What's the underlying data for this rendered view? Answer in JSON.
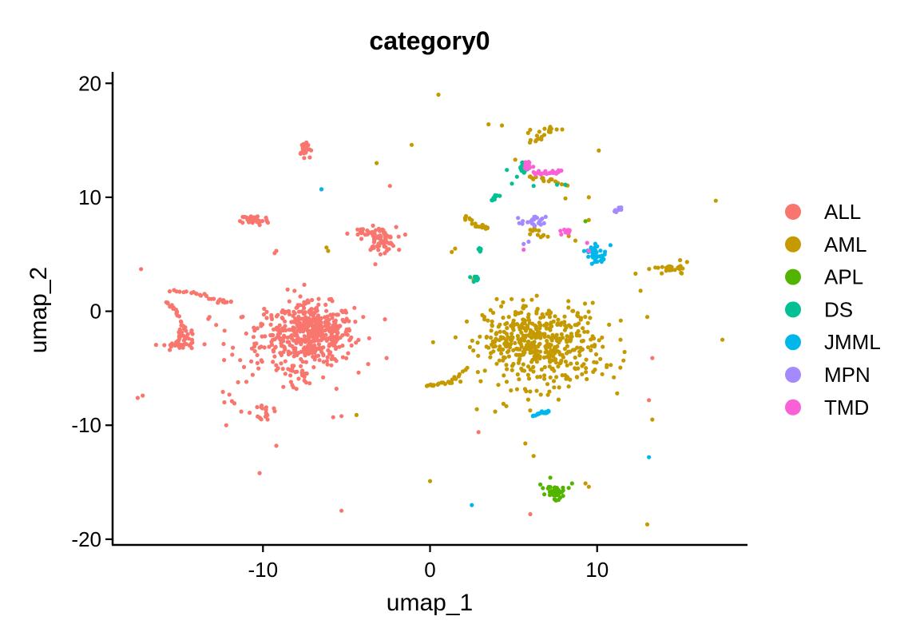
{
  "chart_data": {
    "type": "scatter",
    "title": "category0",
    "xlabel": "umap_1",
    "ylabel": "umap_2",
    "xlim": [
      -19,
      19
    ],
    "ylim": [
      -20.5,
      21
    ],
    "x_ticks": [
      -10,
      0,
      10
    ],
    "x_tick_labels": [
      "-10",
      "0",
      "10"
    ],
    "y_ticks": [
      -20,
      -10,
      0,
      10,
      20
    ],
    "y_tick_labels": [
      "-20",
      "-10",
      "0",
      "10",
      "20"
    ],
    "grid": false,
    "legend_position": "right",
    "series": [
      {
        "name": "ALL",
        "color": "#F8766D",
        "clusters": [
          {
            "cx": -7,
            "cy": -2,
            "rx": 2.2,
            "ry": 2.4,
            "n": 420,
            "dense": true
          },
          {
            "cx": -9,
            "cy": -2.5,
            "rx": 2.5,
            "ry": 3,
            "n": 90
          },
          {
            "cx": -3,
            "cy": 6.3,
            "rx": 0.8,
            "ry": 0.9,
            "n": 70
          },
          {
            "cx": -4.2,
            "cy": 6.8,
            "rx": 0.6,
            "ry": 0.4,
            "n": 12
          },
          {
            "cx": -10.5,
            "cy": 8,
            "rx": 0.7,
            "ry": 0.4,
            "n": 45
          },
          {
            "cx": -7.5,
            "cy": 14.3,
            "rx": 0.3,
            "ry": 0.5,
            "n": 25
          },
          {
            "cx": -15,
            "cy": -3,
            "rx": 0.8,
            "ry": 0.4,
            "n": 30
          },
          {
            "cx": -14.5,
            "cy": -2,
            "rx": 0.4,
            "ry": 0.6,
            "n": 12
          },
          {
            "cx": -9.8,
            "cy": -8.8,
            "rx": 0.35,
            "ry": 0.6,
            "n": 18
          },
          {
            "cx": -12,
            "cy": -7.5,
            "rx": 0.5,
            "ry": 0.7,
            "n": 5
          },
          {
            "cx": -8.2,
            "cy": -6,
            "rx": 0.9,
            "ry": 1.2,
            "n": 15
          }
        ],
        "paths": [
          [
            [
              -15.5,
              1.8
            ],
            [
              -14,
              1.6
            ],
            [
              -12.8,
              0.9
            ],
            [
              -12,
              0.8
            ]
          ],
          [
            [
              -15.8,
              0.8
            ],
            [
              -15.2,
              0
            ],
            [
              -14.8,
              -1.5
            ],
            [
              -15,
              -2.5
            ]
          ]
        ],
        "points": [
          [
            -17.5,
            -7.6
          ],
          [
            -17.2,
            -7.4
          ],
          [
            -17.3,
            3.7
          ],
          [
            -13.2,
            -0.5
          ],
          [
            -12.8,
            -1.2
          ],
          [
            -12.3,
            -1.7
          ],
          [
            -11.8,
            -3.2
          ],
          [
            -13.5,
            -2.9
          ],
          [
            -12.2,
            -10
          ],
          [
            -11.3,
            -8.8
          ],
          [
            -10.8,
            -8.9
          ],
          [
            -9.3,
            5.1
          ],
          [
            -9.2,
            5.3
          ],
          [
            -8.2,
            -0.4
          ],
          [
            -8,
            0.3
          ],
          [
            -7.4,
            14.8
          ],
          [
            -7.2,
            13.5
          ],
          [
            -6.5,
            10.7
          ],
          [
            -5.7,
            -4.2
          ],
          [
            -5.6,
            -6.8
          ],
          [
            -5.3,
            -9.2
          ],
          [
            -5.8,
            -9.3
          ],
          [
            -6.4,
            -5.8
          ],
          [
            -5.3,
            -17.5
          ],
          [
            -10.2,
            -14.2
          ],
          [
            -9.2,
            -11.8
          ],
          [
            -3.5,
            5.5
          ],
          [
            -2.7,
            -0.7
          ],
          [
            -2.6,
            -4.1
          ],
          [
            -2.4,
            11
          ],
          [
            -6.6,
            -3.2
          ],
          [
            -10.7,
            -4.4
          ],
          [
            -4,
            -0.5
          ],
          [
            -4.7,
            -3
          ],
          [
            2.9,
            -10.6
          ],
          [
            6,
            -17.8
          ],
          [
            13.3,
            -4.1
          ],
          [
            13.1,
            -7.8
          ]
        ]
      },
      {
        "name": "AML",
        "color": "#C49A00",
        "clusters": [
          {
            "cx": 6.8,
            "cy": -3,
            "rx": 3.2,
            "ry": 3.3,
            "n": 420,
            "dense": true
          },
          {
            "cx": 4.6,
            "cy": -2.5,
            "rx": 1.4,
            "ry": 1.8,
            "n": 60
          },
          {
            "cx": 14.5,
            "cy": 3.7,
            "rx": 0.9,
            "ry": 0.45,
            "n": 25
          },
          {
            "cx": 6.3,
            "cy": 15.2,
            "rx": 0.9,
            "ry": 0.9,
            "n": 14
          },
          {
            "cx": 7.2,
            "cy": 16,
            "rx": 0.4,
            "ry": 0.2,
            "n": 8
          },
          {
            "cx": 6.4,
            "cy": 6.8,
            "rx": 0.6,
            "ry": 0.6,
            "n": 12
          }
        ],
        "paths": [
          [
            [
              -0.2,
              -6.6
            ],
            [
              0.5,
              -6.4
            ],
            [
              1.3,
              -6.2
            ],
            [
              2.2,
              -5
            ]
          ],
          [
            [
              5.8,
              11.8
            ],
            [
              7,
              11.5
            ],
            [
              8.3,
              11
            ]
          ],
          [
            [
              2,
              8.3
            ],
            [
              2.8,
              7.6
            ],
            [
              3.5,
              7.2
            ]
          ]
        ],
        "points": [
          [
            0.5,
            19
          ],
          [
            -1.1,
            14.6
          ],
          [
            -3.2,
            13
          ],
          [
            -6.2,
            5.6
          ],
          [
            -6.1,
            5.3
          ],
          [
            1.3,
            5.2
          ],
          [
            1.5,
            5.5
          ],
          [
            3.5,
            16.4
          ],
          [
            4.3,
            16.3
          ],
          [
            5.1,
            13.3
          ],
          [
            9.5,
            10
          ],
          [
            9.5,
            8
          ],
          [
            10.1,
            14.1
          ],
          [
            8.3,
            6.6
          ],
          [
            8.7,
            6.2
          ],
          [
            8.1,
            9.9
          ],
          [
            17.1,
            9.7
          ],
          [
            17.5,
            -2.5
          ],
          [
            12.3,
            3.3
          ],
          [
            12.6,
            1.8
          ],
          [
            13,
            -0.5
          ],
          [
            13.3,
            -9.5
          ],
          [
            11.4,
            -2.5
          ],
          [
            11,
            -5.8
          ],
          [
            11.2,
            -7.2
          ],
          [
            0,
            -14.9
          ],
          [
            13,
            -18.7
          ],
          [
            5.7,
            -11.6
          ],
          [
            6.2,
            -12.7
          ],
          [
            2.2,
            -0.9
          ],
          [
            2.6,
            2.8
          ],
          [
            3.9,
            -8.8
          ],
          [
            2.8,
            -8.6
          ],
          [
            9.1,
            -4.8
          ],
          [
            8.3,
            -6.6
          ],
          [
            -4.4,
            -9.1
          ],
          [
            9.5,
            -15.4
          ],
          [
            9.3,
            -15.1
          ]
        ]
      },
      {
        "name": "APL",
        "color": "#53B400",
        "clusters": [
          {
            "cx": 7.5,
            "cy": -15.8,
            "rx": 0.45,
            "ry": 0.4,
            "n": 45,
            "dense": true
          },
          {
            "cx": 7.6,
            "cy": -16.5,
            "rx": 0.15,
            "ry": 0.2,
            "n": 6
          }
        ],
        "paths": [],
        "points": [
          [
            7.2,
            -14.6
          ],
          [
            8.3,
            -15.5
          ],
          [
            8.5,
            -15.1
          ],
          [
            9.3,
            7.9
          ],
          [
            6.6,
            -15.2
          ]
        ]
      },
      {
        "name": "DS",
        "color": "#00C094",
        "clusters": [
          {
            "cx": 5.6,
            "cy": 12.6,
            "rx": 0.25,
            "ry": 0.5,
            "n": 22
          }
        ],
        "paths": [
          [
            [
              3.7,
              9.8
            ],
            [
              4.1,
              10.3
            ]
          ],
          [
            [
              2.9,
              5.6
            ],
            [
              3,
              5.2
            ]
          ],
          [
            [
              2.6,
              3
            ],
            [
              2.8,
              2.6
            ]
          ]
        ],
        "points": [
          [
            4.9,
            11.2
          ],
          [
            5.2,
            11.8
          ],
          [
            4.6,
            12.4
          ],
          [
            6.2,
            11
          ],
          [
            8.1,
            11.1
          ],
          [
            7.6,
            11.1
          ],
          [
            2.4,
            3
          ]
        ]
      },
      {
        "name": "JMML",
        "color": "#00B6EB",
        "clusters": [
          {
            "cx": 9.7,
            "cy": 5.3,
            "rx": 0.45,
            "ry": 0.5,
            "n": 25
          },
          {
            "cx": 10,
            "cy": 4.5,
            "rx": 0.35,
            "ry": 0.3,
            "n": 15
          }
        ],
        "paths": [
          [
            [
              6.2,
              -9.2
            ],
            [
              6.7,
              -8.9
            ],
            [
              7.1,
              -8.8
            ]
          ]
        ],
        "points": [
          [
            -6.5,
            10.7
          ],
          [
            10.8,
            5.8
          ],
          [
            2.5,
            -17
          ],
          [
            13.1,
            -12.8
          ]
        ]
      },
      {
        "name": "MPN",
        "color": "#A58AFF",
        "clusters": [
          {
            "cx": 6.2,
            "cy": 7.8,
            "rx": 0.6,
            "ry": 0.4,
            "n": 22
          }
        ],
        "paths": [
          [
            [
              11.1,
              8.8
            ],
            [
              11.4,
              9.1
            ]
          ]
        ],
        "points": [
          [
            5.9,
            6.1
          ],
          [
            5.6,
            5.9
          ],
          [
            6.3,
            8.3
          ]
        ]
      },
      {
        "name": "TMD",
        "color": "#FB61D7",
        "clusters": [
          {
            "cx": 5.8,
            "cy": 12.7,
            "rx": 0.3,
            "ry": 0.4,
            "n": 12
          },
          {
            "cx": 8.2,
            "cy": 7,
            "rx": 0.35,
            "ry": 0.3,
            "n": 10
          }
        ],
        "paths": [
          [
            [
              6.2,
              12.2
            ],
            [
              6.8,
              12.1
            ],
            [
              7.4,
              12.2
            ],
            [
              7.8,
              12.4
            ]
          ]
        ],
        "points": [
          [
            5.6,
            5.4
          ],
          [
            9.4,
            6
          ],
          [
            9.5,
            5.3
          ]
        ]
      }
    ]
  }
}
